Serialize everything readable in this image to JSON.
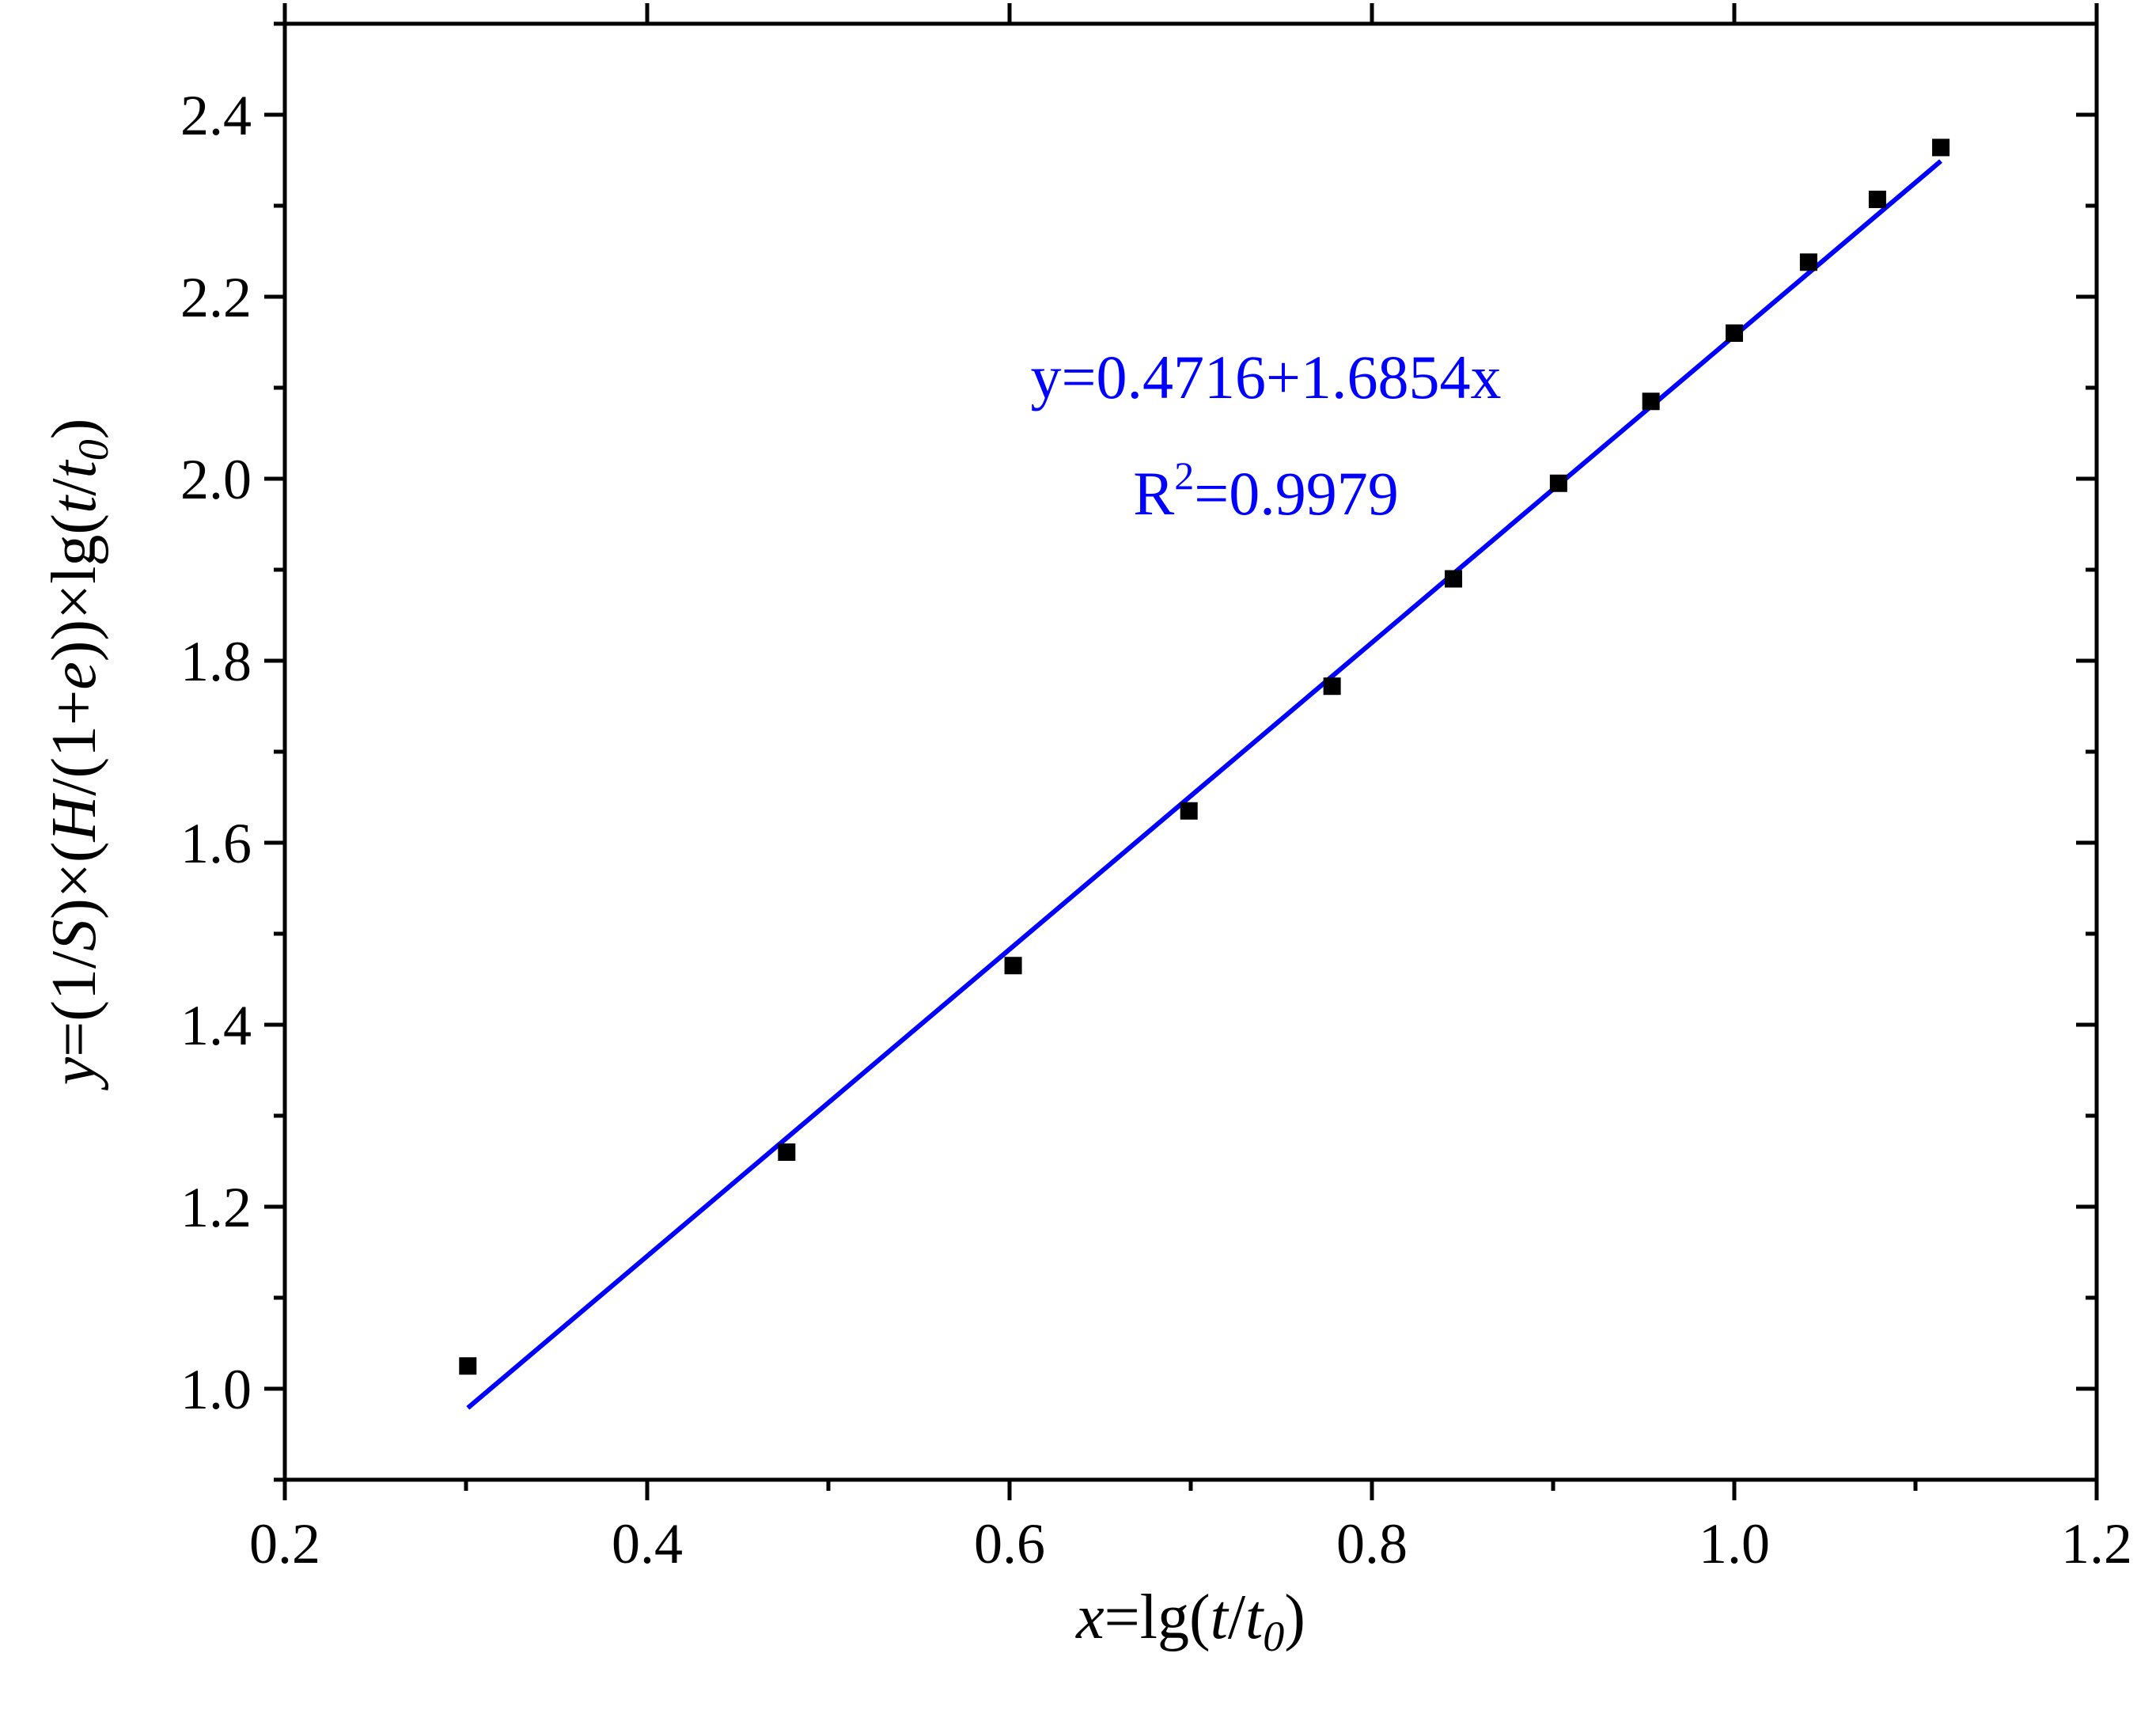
{
  "chart_data": {
    "type": "scatter",
    "xlabel": {
      "pre": "x",
      "mid": "=lg(",
      "t": "t",
      "slash": "/",
      "t0": "t",
      "sub": "0",
      "end": ")"
    },
    "ylabel": {
      "y": "y",
      "p1": "=(1/",
      "S": "S",
      "p2": ")×(",
      "H": "H",
      "p3": "/(1+",
      "e": "e",
      "p4": "))×lg(",
      "t": "t",
      "slash": "/",
      "t0": "t",
      "sub": "0",
      "end": ")"
    },
    "xlim": [
      0.2,
      1.2
    ],
    "ylim": [
      0.9,
      2.5
    ],
    "xticks": [
      0.2,
      0.4,
      0.6,
      0.8,
      1.0,
      1.2
    ],
    "xtick_labels": [
      "0.2",
      "0.4",
      "0.6",
      "0.8",
      "1.0",
      "1.2"
    ],
    "yticks": [
      1.0,
      1.2,
      1.4,
      1.6,
      1.8,
      2.0,
      2.2,
      2.4
    ],
    "ytick_labels": [
      "1.0",
      "1.2",
      "1.4",
      "1.6",
      "1.8",
      "2.0",
      "2.2",
      "2.4"
    ],
    "points": {
      "x": [
        0.301,
        0.477,
        0.602,
        0.699,
        0.778,
        0.845,
        0.903,
        0.954,
        1.0,
        1.041,
        1.079,
        1.114
      ],
      "y": [
        1.025,
        1.26,
        1.465,
        1.635,
        1.772,
        1.89,
        1.995,
        2.085,
        2.16,
        2.238,
        2.307,
        2.364
      ],
      "color": "#000000"
    },
    "fit": {
      "intercept": 0.4716,
      "slope": 1.6854,
      "x_range": [
        0.301,
        1.114
      ],
      "color": "#0000ff",
      "equation": "y=0.4716+1.6854x",
      "r2_prefix": "R",
      "r2_sup": "2",
      "r2_value": "=0.9979"
    },
    "grid": false,
    "legend": "none"
  }
}
